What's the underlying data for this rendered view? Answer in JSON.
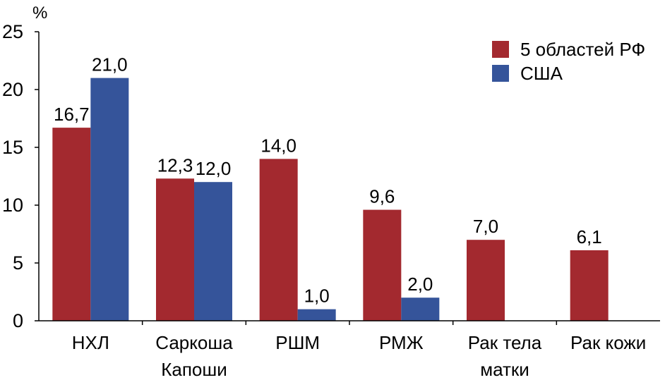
{
  "chart_data": {
    "type": "bar",
    "y_unit_label": "%",
    "ylim": [
      0,
      25
    ],
    "yticks": [
      "0",
      "5",
      "10",
      "15",
      "20",
      "25"
    ],
    "grid": false,
    "legend_position": "top-right",
    "categories": [
      [
        "НХЛ"
      ],
      [
        "Саркоша",
        "Капоши"
      ],
      [
        "РШМ"
      ],
      [
        "РМЖ"
      ],
      [
        "Рак тела",
        "матки"
      ],
      [
        "Рак кожи"
      ]
    ],
    "series": [
      {
        "name": "5 областей РФ",
        "color": "#a3292f",
        "values": [
          16.7,
          12.3,
          14.0,
          9.6,
          7.0,
          6.1
        ],
        "labels": [
          "16,7",
          "12,3",
          "14,0",
          "9,6",
          "7,0",
          "6,1"
        ]
      },
      {
        "name": "США",
        "color": "#35549a",
        "values": [
          21.0,
          12.0,
          1.0,
          2.0,
          null,
          null
        ],
        "labels": [
          "21,0",
          "12,0",
          "1,0",
          "2,0",
          null,
          null
        ]
      }
    ]
  }
}
